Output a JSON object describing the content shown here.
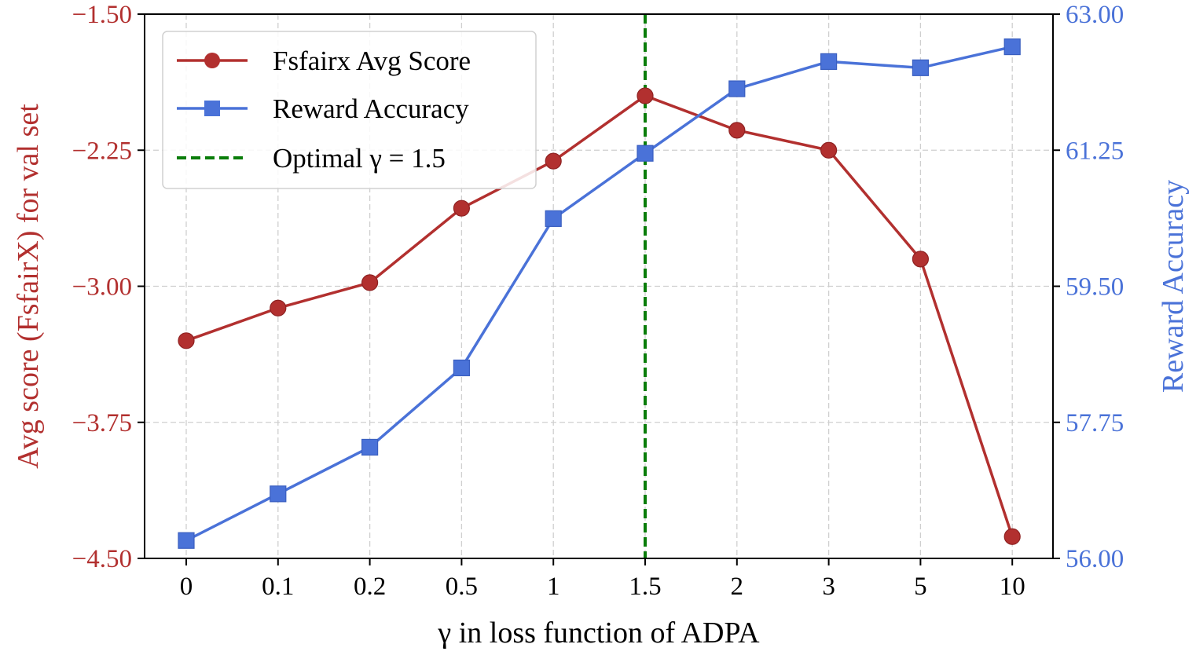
{
  "chart_data": {
    "type": "line",
    "categories": [
      "0",
      "0.1",
      "0.2",
      "0.5",
      "1",
      "1.5",
      "2",
      "3",
      "5",
      "10"
    ],
    "xlabel": "γ in loss function of ADPA",
    "left_axis": {
      "label": "Avg score (FsfairX) for val set",
      "ylim": [
        -4.5,
        -1.5
      ],
      "ticks": [
        -4.5,
        -3.75,
        -3.0,
        -2.25,
        -1.5
      ],
      "tick_labels": [
        "−4.50",
        "−3.75",
        "−3.00",
        "−2.25",
        "−1.50"
      ],
      "color": "#b2302f"
    },
    "right_axis": {
      "label": "Reward Accuracy",
      "ylim": [
        56.0,
        63.0
      ],
      "ticks": [
        56.0,
        57.75,
        59.5,
        61.25,
        63.0
      ],
      "tick_labels": [
        "56.00",
        "57.75",
        "59.50",
        "61.25",
        "63.00"
      ],
      "color": "#4a72d8"
    },
    "series": [
      {
        "name": "Fsfairx Avg Score",
        "axis": "left",
        "marker": "circle",
        "color": "#b2302f",
        "values": [
          -3.3,
          -3.12,
          -2.98,
          -2.57,
          -2.31,
          -1.95,
          -2.14,
          -2.25,
          -2.85,
          -4.38
        ]
      },
      {
        "name": "Reward Accuracy",
        "axis": "right",
        "marker": "square",
        "color": "#4a72d8",
        "values": [
          56.23,
          56.83,
          57.43,
          58.45,
          60.37,
          61.21,
          62.04,
          62.39,
          62.31,
          62.58
        ]
      }
    ],
    "vline": {
      "x": "1.5",
      "label": "Optimal γ = 1.5",
      "color": "#0a7d0a"
    },
    "legend": {
      "position": "top-left",
      "entries": [
        "Fsfairx Avg Score",
        "Reward Accuracy",
        "Optimal γ = 1.5"
      ]
    },
    "grid": true
  }
}
